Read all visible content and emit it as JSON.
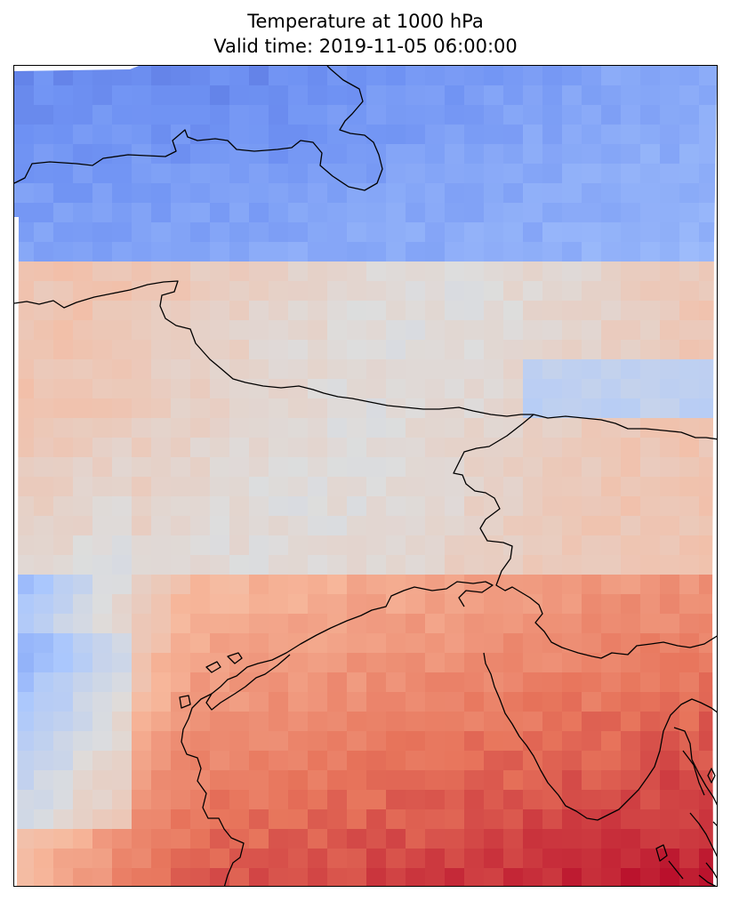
{
  "figure": {
    "title_line1": "Temperature at 1000 hPa",
    "title_line2": "Valid time: 2019-11-05 06:00:00"
  },
  "colormap": [
    "#3b4cc0",
    "#6f92f3",
    "#aac7fd",
    "#dddddd",
    "#f7b89c",
    "#e7745b",
    "#b40426"
  ],
  "field": {
    "grid_cols": 36,
    "grid_rows": 42,
    "description": ""
  }
}
